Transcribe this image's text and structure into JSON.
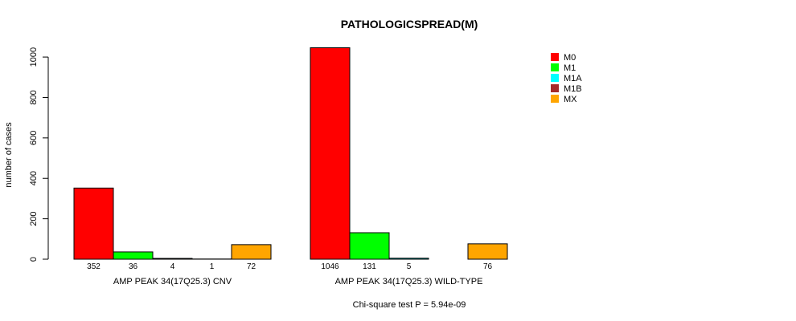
{
  "chart_data": {
    "type": "bar",
    "title": "PATHOLOGICSPREAD(M)",
    "ylabel": "number of cases",
    "ylim": [
      0,
      1046
    ],
    "yticks": [
      0,
      200,
      400,
      600,
      800,
      1000
    ],
    "series_names": [
      "M0",
      "M1",
      "M1A",
      "M1B",
      "MX"
    ],
    "series_colors": [
      "#ff0000",
      "#00ff00",
      "#00ffff",
      "#a52a2a",
      "#ffa500"
    ],
    "groups": [
      {
        "label": "AMP PEAK 34(17Q25.3) CNV",
        "values": [
          352,
          36,
          4,
          1,
          72
        ],
        "value_labels": [
          "352",
          "36",
          "4",
          "1",
          "72"
        ]
      },
      {
        "label": "AMP PEAK 34(17Q25.3) WILD-TYPE",
        "values": [
          1046,
          131,
          5,
          0,
          76
        ],
        "value_labels": [
          "1046",
          "131",
          "5",
          "",
          "76"
        ]
      }
    ],
    "legend_position": "top-right",
    "footnote": "Chi-square test P = 5.94e-09"
  }
}
